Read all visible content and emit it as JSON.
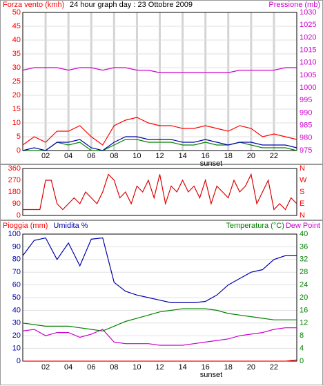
{
  "chart_data": [
    {
      "type": "line",
      "title": "24 hour graph day : 23 Ottobre 2009",
      "x": [
        0,
        1,
        2,
        3,
        4,
        5,
        6,
        7,
        8,
        9,
        10,
        11,
        12,
        13,
        14,
        15,
        16,
        17,
        18,
        19,
        20,
        21,
        22,
        23,
        24
      ],
      "xlim": [
        0,
        24
      ],
      "xticks": [
        {
          "value": 2,
          "label": "02"
        },
        {
          "value": 4,
          "label": "04"
        },
        {
          "value": 6,
          "label": "06"
        },
        {
          "value": 8,
          "label": "08"
        },
        {
          "value": 10,
          "label": "10"
        },
        12,
        14,
        16,
        18,
        20,
        22
      ],
      "annotation": {
        "text": "sunset",
        "x": 16.5
      },
      "ylim": [
        0,
        50
      ],
      "yticks": [
        0,
        5,
        10,
        15,
        20,
        25,
        30,
        35,
        40,
        45,
        50
      ],
      "ytick_color": "#ff0000",
      "y2lim": [
        975,
        1030
      ],
      "y2ticks": [
        975,
        980,
        985,
        990,
        995,
        1000,
        1005,
        1010,
        1015,
        1020,
        1025,
        1030
      ],
      "y2tick_color": "#cc00cc",
      "grid": true,
      "xgrid": true,
      "series": [
        {
          "name": "Forza vento (kmh)",
          "color": "#ff0000",
          "values": [
            2,
            5,
            3,
            7,
            7,
            9,
            5,
            2,
            9,
            11,
            12,
            10,
            9,
            9,
            8,
            8,
            9,
            8,
            7,
            9,
            8,
            5,
            6,
            5,
            4
          ]
        },
        {
          "color": "#008000",
          "values": [
            0,
            0,
            0,
            3,
            2,
            3,
            0,
            0,
            2,
            4,
            4,
            3,
            3,
            3,
            2,
            2,
            3,
            2,
            2,
            3,
            2,
            1,
            1,
            1,
            0
          ]
        },
        {
          "color": "#0000aa",
          "values": [
            0,
            1,
            0,
            3,
            3,
            4,
            1,
            0,
            3,
            5,
            5,
            4,
            4,
            4,
            3,
            3,
            4,
            3,
            2,
            3,
            3,
            2,
            2,
            2,
            1
          ]
        },
        {
          "name": "Pressione (mb)",
          "color": "#cc00cc",
          "axis": "y2",
          "values": [
            1007,
            1008,
            1008,
            1008,
            1007,
            1008,
            1008,
            1007,
            1008,
            1008,
            1007,
            1007,
            1006,
            1006,
            1006,
            1006,
            1006,
            1006,
            1006,
            1007,
            1007,
            1007,
            1007,
            1008,
            1008
          ]
        }
      ]
    },
    {
      "type": "line",
      "x": [
        0,
        0.5,
        1,
        1.5,
        2,
        2.5,
        3,
        3.5,
        4,
        4.5,
        5,
        5.5,
        6,
        6.5,
        7,
        7.5,
        8,
        8.5,
        9,
        9.5,
        10,
        10.5,
        11,
        11.5,
        12,
        12.5,
        13,
        13.5,
        14,
        14.5,
        15,
        15.5,
        16,
        16.5,
        17,
        17.5,
        18,
        18.5,
        19,
        19.5,
        20,
        20.5,
        21,
        21.5,
        22,
        22.5,
        23,
        23.5,
        24
      ],
      "xlim": [
        0,
        24
      ],
      "ylim": [
        0,
        360
      ],
      "yticks": [
        0,
        90,
        180,
        270,
        360
      ],
      "ytick_color": "#ff0000",
      "y2lim": [
        0,
        360
      ],
      "y2ticks": [
        {
          "value": 0,
          "label": "N"
        },
        {
          "value": 90,
          "label": "E"
        },
        {
          "value": 180,
          "label": "S"
        },
        {
          "value": 270,
          "label": "W"
        },
        {
          "value": 360,
          "label": "N"
        }
      ],
      "y2tick_color": "#ff0000",
      "grid": false,
      "xgrid": false,
      "series": [
        {
          "color": "#dd0000",
          "values": [
            45,
            45,
            45,
            45,
            270,
            270,
            90,
            45,
            90,
            135,
            90,
            180,
            135,
            90,
            180,
            315,
            270,
            135,
            180,
            90,
            225,
            180,
            270,
            135,
            315,
            90,
            225,
            180,
            270,
            180,
            225,
            135,
            270,
            90,
            225,
            180,
            135,
            270,
            180,
            225,
            315,
            90,
            180,
            270,
            45,
            90,
            45,
            135,
            90
          ]
        }
      ]
    },
    {
      "type": "line",
      "x": [
        0,
        1,
        2,
        3,
        4,
        5,
        6,
        7,
        8,
        9,
        10,
        11,
        12,
        13,
        14,
        15,
        16,
        17,
        18,
        19,
        20,
        21,
        22,
        23,
        24
      ],
      "xlim": [
        0,
        24
      ],
      "xticks": [
        {
          "value": 2,
          "label": "02"
        },
        {
          "value": 4,
          "label": "04"
        },
        {
          "value": 6,
          "label": "06"
        },
        {
          "value": 8,
          "label": "08"
        },
        {
          "value": 10,
          "label": "10"
        },
        12,
        14,
        16,
        18,
        20,
        22
      ],
      "annotation": {
        "text": "sunset",
        "x": 16.5
      },
      "ylim": [
        0,
        100
      ],
      "yticks": [
        0,
        10,
        20,
        30,
        40,
        50,
        60,
        70,
        80,
        90,
        100
      ],
      "ytick_color": "#0000aa",
      "y2lim": [
        0,
        40
      ],
      "y2ticks": [
        0,
        4,
        8,
        12,
        16,
        20,
        24,
        28,
        32,
        36,
        40
      ],
      "y2tick_color": "#008000",
      "grid": true,
      "xgrid": false,
      "series": [
        {
          "name": "Pioggia (mm)",
          "color": "#ff0000",
          "values": [
            0,
            0,
            0,
            0,
            0,
            0,
            0,
            0,
            0,
            0,
            0,
            0,
            0,
            0,
            0,
            0,
            0,
            0,
            0,
            0,
            0,
            0,
            0,
            0,
            1
          ]
        },
        {
          "name": "Umidita %",
          "color": "#0000aa",
          "values": [
            83,
            95,
            97,
            80,
            93,
            75,
            96,
            97,
            62,
            55,
            52,
            50,
            48,
            46,
            46,
            46,
            47,
            52,
            60,
            65,
            70,
            72,
            80,
            83,
            83
          ]
        },
        {
          "name": "Temperatura (°C)",
          "color": "#008000",
          "axis": "y2",
          "values": [
            12,
            11.5,
            11,
            11,
            11,
            10.5,
            10,
            9.5,
            11,
            12.5,
            13.5,
            14.5,
            15.5,
            16,
            16.5,
            16.5,
            16.5,
            16,
            15,
            14.5,
            14,
            13.5,
            13,
            13,
            13
          ]
        },
        {
          "name": "Dew Point",
          "color": "#cc00cc",
          "axis": "y2",
          "values": [
            9.5,
            10,
            8,
            9,
            9,
            7.5,
            8.5,
            10,
            6,
            5.5,
            5.5,
            5.5,
            5,
            5,
            5,
            5.5,
            6,
            6.5,
            7,
            8,
            8.5,
            9,
            10,
            10.5,
            10.5
          ]
        }
      ]
    }
  ]
}
